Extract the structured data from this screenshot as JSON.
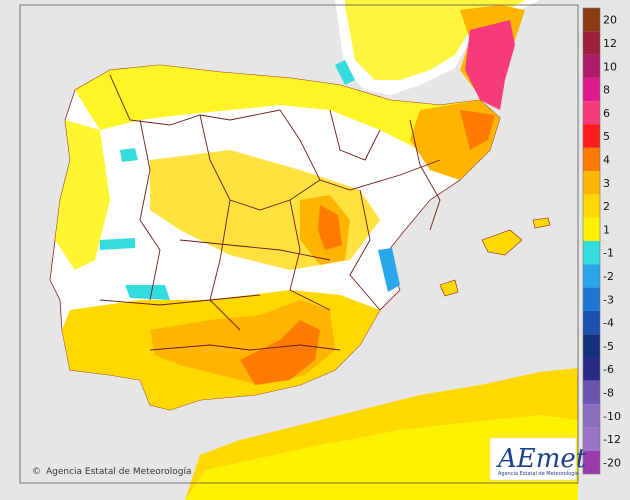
{
  "credit": {
    "symbol": "©",
    "text": "Agencia Estatal de Meteorología"
  },
  "logo": {
    "word": "AEmet",
    "sub": "Agencia Estatal de Meteorología"
  },
  "legend": {
    "labels": [
      "20",
      "12",
      "10",
      "8",
      "6",
      "5",
      "4",
      "3",
      "2",
      "1",
      "-1",
      "-2",
      "-3",
      "-4",
      "-5",
      "-6",
      "-8",
      "-10",
      "-12",
      "-20"
    ],
    "colors": {
      "20": "#8b3a14",
      "12": "#9c1f3b",
      "10": "#b01a6a",
      "8": "#e01a8c",
      "6": "#f53b7a",
      "5": "#ff1e1e",
      "4": "#ff7a00",
      "3": "#ffb400",
      "2": "#ffd800",
      "1": "#fff200",
      "-1": "#33dddd",
      "-2": "#2aa7e8",
      "-3": "#1f77d4",
      "-4": "#1b4fb0",
      "-5": "#15307d",
      "-6": "#2a2a88",
      "-8": "#6a55b0",
      "-10": "#8a6ec0",
      "-12": "#9a74c8",
      "-20": "#9a3cb0"
    }
  },
  "colors": {
    "sea": "#e6e6e6",
    "land": "#ffffff",
    "border": "#6b1a1a"
  }
}
